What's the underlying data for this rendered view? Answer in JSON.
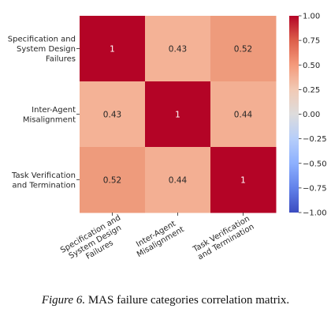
{
  "chart_data": {
    "type": "heatmap",
    "row_labels": [
      [
        "Specification and",
        "System Design",
        "Failures"
      ],
      [
        "Inter-Agent",
        "Misalignment"
      ],
      [
        "Task Verification",
        "and Termination"
      ]
    ],
    "col_labels": [
      [
        "Specification and",
        "System Design",
        "Failures"
      ],
      [
        "Inter-Agent",
        "Misalignment"
      ],
      [
        "Task Verification",
        "and Termination"
      ]
    ],
    "values": [
      [
        1,
        0.43,
        0.52
      ],
      [
        0.43,
        1,
        0.44
      ],
      [
        0.52,
        0.44,
        1
      ]
    ],
    "cell_labels": [
      [
        "1",
        "0.43",
        "0.52"
      ],
      [
        "0.43",
        "1",
        "0.44"
      ],
      [
        "0.52",
        "0.44",
        "1"
      ]
    ],
    "vmin": -1,
    "vmax": 1,
    "colormap": "coolwarm",
    "colorbar_ticks": [
      "1.00",
      "0.75",
      "0.50",
      "0.25",
      "0.00",
      "−0.25",
      "−0.50",
      "−0.75",
      "−1.00"
    ],
    "colorbar_tick_values": [
      1,
      0.75,
      0.5,
      0.25,
      0,
      -0.25,
      -0.5,
      -0.75,
      -1
    ]
  },
  "caption": {
    "label": "Figure 6.",
    "text": " MAS failure categories correlation matrix."
  }
}
